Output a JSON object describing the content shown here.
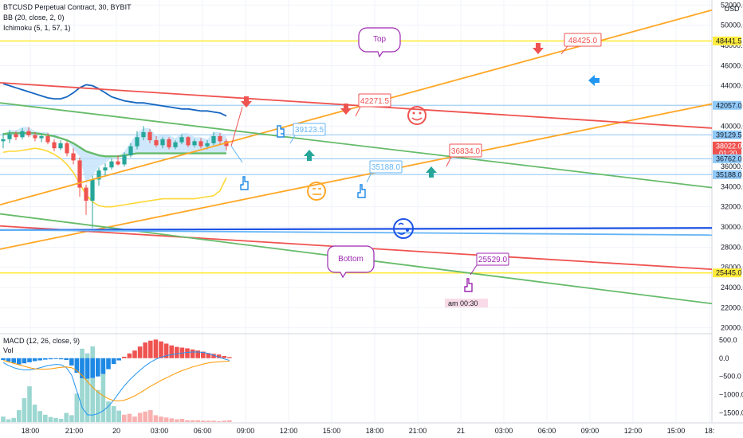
{
  "legend": {
    "symbol": "BTCUSD Perpetual Contract, 30, BYBIT",
    "bb": "BB (20, close, 2, 0)",
    "ichimoku": "Ichimoku (5, 1, 57, 1)",
    "macd": "MACD (12, 26, close, 9)",
    "vol": "Vol"
  },
  "currency": "USD",
  "colors": {
    "grid": "#f0f3fa",
    "up": "#26a69a",
    "down": "#ef5350",
    "bb": "#2962ff",
    "orange_trend": "#ffa726",
    "red_trend": "#ef5350",
    "green_trend": "#66bb6a",
    "blue_trend": "#1e53e5",
    "light_blue": "#64b5f6",
    "yellow": "#ffeb3b",
    "purple": "#9c27b0"
  },
  "chart_data": [
    {
      "type": "line",
      "title": "BTCUSD Perpetual Contract, 30, BYBIT",
      "x_ticks": [
        "18:00",
        "21:00",
        "20",
        "03:00",
        "06:00",
        "09:00",
        "12:00",
        "15:00",
        "18:00",
        "21:00",
        "21",
        "03:00",
        "06:00",
        "09:00",
        "12:00",
        "15:00",
        "18:"
      ],
      "y_ticks": [
        20000,
        22000,
        24000,
        26000,
        28000,
        30000,
        32000,
        34000,
        36000,
        38000,
        40000,
        42000,
        44000,
        46000,
        48000,
        50000,
        52000
      ],
      "ylim": [
        19500,
        52500
      ],
      "price_labels": [
        {
          "value": 48441.5,
          "text": "48441.5",
          "color": "#ffeb3b"
        },
        {
          "value": 42057.0,
          "text": "42057.0",
          "color": "#90caf9"
        },
        {
          "value": 39129.5,
          "text": "39129.5",
          "color": "#90caf9"
        },
        {
          "value": 38022.0,
          "text": "38022.0",
          "sub": "01:20",
          "color": "#ef5350"
        },
        {
          "value": 36762.0,
          "text": "36762.0",
          "color": "#90caf9"
        },
        {
          "value": 35188.0,
          "text": "35188.0",
          "color": "#90caf9"
        },
        {
          "value": 25445.0,
          "text": "25445.0",
          "color": "#ffeb3b"
        }
      ],
      "horizontal_levels": [
        48441.5,
        42057.0,
        39129.5,
        36762.0,
        35188.0,
        25445.0
      ],
      "candles": [
        {
          "o": 38500,
          "h": 39300,
          "l": 37800,
          "c": 38700
        },
        {
          "o": 38700,
          "h": 39600,
          "l": 38300,
          "c": 39200
        },
        {
          "o": 39200,
          "h": 39500,
          "l": 38600,
          "c": 38900
        },
        {
          "o": 38900,
          "h": 39800,
          "l": 38700,
          "c": 39500
        },
        {
          "o": 39500,
          "h": 39900,
          "l": 38900,
          "c": 39100
        },
        {
          "o": 39100,
          "h": 39400,
          "l": 38500,
          "c": 38800
        },
        {
          "o": 38800,
          "h": 39200,
          "l": 38400,
          "c": 39000
        },
        {
          "o": 39000,
          "h": 39300,
          "l": 38200,
          "c": 38400
        },
        {
          "o": 38400,
          "h": 38700,
          "l": 37500,
          "c": 37800
        },
        {
          "o": 37800,
          "h": 38600,
          "l": 37600,
          "c": 38300
        },
        {
          "o": 38300,
          "h": 38500,
          "l": 37000,
          "c": 37300
        },
        {
          "o": 37300,
          "h": 37800,
          "l": 36200,
          "c": 36600
        },
        {
          "o": 36600,
          "h": 36900,
          "l": 33000,
          "c": 33900
        },
        {
          "o": 33900,
          "h": 34200,
          "l": 31200,
          "c": 32600
        },
        {
          "o": 32600,
          "h": 35100,
          "l": 29900,
          "c": 34700
        },
        {
          "o": 34700,
          "h": 35900,
          "l": 34100,
          "c": 35600
        },
        {
          "o": 35600,
          "h": 36300,
          "l": 35100,
          "c": 35900
        },
        {
          "o": 35900,
          "h": 36800,
          "l": 35700,
          "c": 36500
        },
        {
          "o": 36500,
          "h": 37100,
          "l": 36100,
          "c": 36200
        },
        {
          "o": 36200,
          "h": 37400,
          "l": 36000,
          "c": 37100
        },
        {
          "o": 37100,
          "h": 38300,
          "l": 36900,
          "c": 38000
        },
        {
          "o": 38000,
          "h": 39500,
          "l": 37700,
          "c": 38900
        },
        {
          "o": 38900,
          "h": 40000,
          "l": 38600,
          "c": 39400
        },
        {
          "o": 39400,
          "h": 39700,
          "l": 38300,
          "c": 38600
        },
        {
          "o": 38600,
          "h": 39000,
          "l": 37900,
          "c": 38100
        },
        {
          "o": 38100,
          "h": 38900,
          "l": 37800,
          "c": 38700
        },
        {
          "o": 38700,
          "h": 38900,
          "l": 37700,
          "c": 37900
        },
        {
          "o": 37900,
          "h": 38600,
          "l": 37700,
          "c": 38400
        },
        {
          "o": 38400,
          "h": 39200,
          "l": 38200,
          "c": 38900
        },
        {
          "o": 38900,
          "h": 39000,
          "l": 37900,
          "c": 38100
        },
        {
          "o": 38100,
          "h": 38700,
          "l": 37900,
          "c": 38500
        },
        {
          "o": 38500,
          "h": 38800,
          "l": 37800,
          "c": 38000
        },
        {
          "o": 38000,
          "h": 38600,
          "l": 37700,
          "c": 38300
        },
        {
          "o": 38300,
          "h": 39400,
          "l": 38100,
          "c": 39000
        },
        {
          "o": 39000,
          "h": 39300,
          "l": 38200,
          "c": 38500
        },
        {
          "o": 38500,
          "h": 38700,
          "l": 37600,
          "c": 38022
        }
      ],
      "bb_upper": [
        44200,
        44000,
        43800,
        43600,
        43400,
        43200,
        43000,
        42800,
        42700,
        42700,
        42900,
        43300,
        43800,
        44100,
        44000,
        43700,
        43300,
        42900,
        42700,
        42500,
        42400,
        42300,
        42300,
        42200,
        42100,
        42000,
        41900,
        41800,
        41700,
        41700,
        41600,
        41500,
        41500,
        41400,
        41300,
        41000
      ],
      "bb_middle": [
        39200,
        39300,
        39300,
        39300,
        39300,
        39300,
        39200,
        39100,
        39000,
        38800,
        38600,
        38300,
        37900,
        37500,
        37300,
        37100,
        37000,
        37000,
        37000,
        37100,
        37200,
        37300,
        37300,
        37300,
        37300,
        37300,
        37300,
        37300,
        37300,
        37300,
        37300,
        37300,
        37300,
        37300,
        37300,
        37300
      ],
      "bb_lower": [
        37400,
        37500,
        37500,
        37600,
        37700,
        37800,
        37700,
        37500,
        37200,
        36800,
        36200,
        35400,
        34300,
        33200,
        32500,
        32100,
        32000,
        32000,
        32100,
        32200,
        32300,
        32400,
        32500,
        32600,
        32700,
        32800,
        32800,
        32800,
        32800,
        32800,
        32800,
        32900,
        33000,
        33100,
        33600,
        34900
      ],
      "drawings": {
        "orange_upper": {
          "from": [
            "left",
            32200
          ],
          "to": [
            "right",
            51500
          ]
        },
        "orange_lower": {
          "from": [
            "left",
            27800
          ],
          "to": [
            "right",
            42200
          ]
        },
        "red_upper": {
          "from": [
            "left",
            44300
          ],
          "to": [
            "right",
            39800
          ]
        },
        "red_lower": {
          "from": [
            "left",
            30100
          ],
          "to": [
            "right",
            25800
          ]
        },
        "green_upper": {
          "from": [
            "left",
            42300
          ],
          "to": [
            "right",
            33900
          ]
        },
        "green_lower": {
          "from": [
            "left",
            31300
          ],
          "to": [
            "right",
            22400
          ]
        },
        "blue_flat": {
          "from": [
            "left",
            29700
          ],
          "to": [
            "right",
            29900
          ]
        },
        "lightblue_flat": {
          "from": [
            "left",
            29700
          ],
          "to": [
            "right",
            29200
          ]
        }
      },
      "callouts": [
        {
          "text": "48425.0",
          "style": "red"
        },
        {
          "text": "42271.5",
          "style": "red"
        },
        {
          "text": "39123.5",
          "style": "blue"
        },
        {
          "text": "36834.0",
          "style": "red"
        },
        {
          "text": "35188.0",
          "style": "blue"
        },
        {
          "text": "25529.0",
          "style": "purple"
        }
      ],
      "bubbles": [
        "Top",
        "Bottom"
      ],
      "time_label": "am 00:30"
    },
    {
      "type": "bar",
      "title": "MACD (12, 26, close, 9)",
      "y_ticks": [
        500,
        0,
        -500,
        -1000,
        -1500
      ],
      "y_tick_labels": [
        "500.0",
        "0.0",
        "−500.0",
        "−1000.0",
        "−1500.0"
      ],
      "ylim": [
        -1750,
        650
      ],
      "histogram": [
        -50,
        -90,
        -130,
        -170,
        -140,
        -110,
        -80,
        -60,
        -40,
        -30,
        -20,
        -30,
        -50,
        -200,
        -400,
        -550,
        -560,
        -540,
        -500,
        -430,
        -300,
        -160,
        -60,
        40,
        130,
        210,
        320,
        430,
        480,
        510,
        460,
        400,
        350,
        310,
        290,
        270,
        240,
        210,
        180,
        140,
        120,
        100,
        60,
        30
      ],
      "macd": [
        -120,
        -200,
        -260,
        -300,
        -320,
        -320,
        -300,
        -260,
        -220,
        -190,
        -170,
        -180,
        -260,
        -460,
        -900,
        -1350,
        -1550,
        -1560,
        -1520,
        -1440,
        -1320,
        -1150,
        -950,
        -760,
        -600,
        -460,
        -330,
        -210,
        -110,
        -30,
        30,
        70,
        100,
        120,
        140,
        160,
        170,
        170,
        160,
        130,
        80,
        30,
        -20,
        -60
      ],
      "signal": [
        -60,
        -100,
        -140,
        -180,
        -220,
        -260,
        -290,
        -300,
        -300,
        -290,
        -270,
        -250,
        -240,
        -260,
        -340,
        -470,
        -640,
        -800,
        -930,
        -1030,
        -1110,
        -1160,
        -1170,
        -1150,
        -1100,
        -1030,
        -950,
        -860,
        -770,
        -690,
        -610,
        -540,
        -470,
        -400,
        -340,
        -290,
        -240,
        -200,
        -160,
        -130,
        -110,
        -100,
        -90,
        -80
      ],
      "volume": [
        120,
        60,
        90,
        260,
        520,
        780,
        380,
        240,
        160,
        110,
        90,
        70,
        200,
        150,
        620,
        1600,
        1500,
        1650,
        700,
        1200,
        450,
        350,
        250,
        160,
        180,
        120,
        200,
        230,
        260,
        150,
        120,
        100,
        80,
        60,
        70,
        40,
        40,
        40,
        30,
        30,
        30,
        20,
        30,
        40
      ]
    }
  ]
}
